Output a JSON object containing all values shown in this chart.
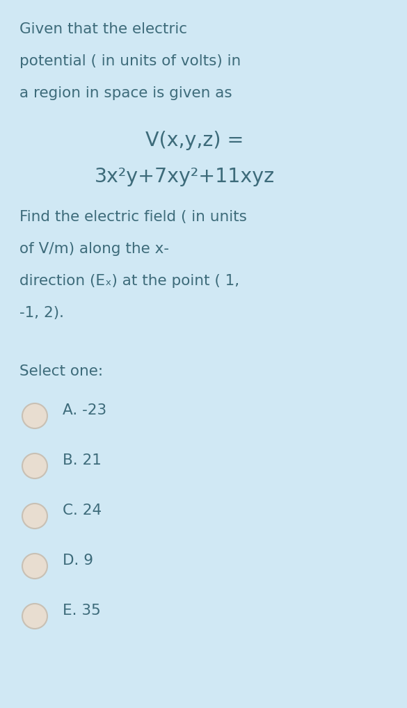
{
  "background_color": "#d0e8f4",
  "text_color": "#3d6b7a",
  "title_lines": [
    "Given that the electric",
    "potential ( in units of volts) in",
    "a region in space is given as"
  ],
  "equation_line1": "V(x,y,z) =",
  "equation_line2": "3x²y+7xy²+11xyz",
  "body_lines": [
    "Find the electric field ( in units",
    "of V/m) along the x-",
    "direction (Eₓ) at the point ( 1,",
    "-1, 2)."
  ],
  "select_label": "Select one:",
  "options": [
    "A. -23",
    "B. 21",
    "C. 24",
    "D. 9",
    "E. 35"
  ],
  "font_size_body": 15.5,
  "font_size_equation": 20.5,
  "circle_facecolor": "#e8ddd0",
  "circle_edgecolor": "#c8c0b4"
}
